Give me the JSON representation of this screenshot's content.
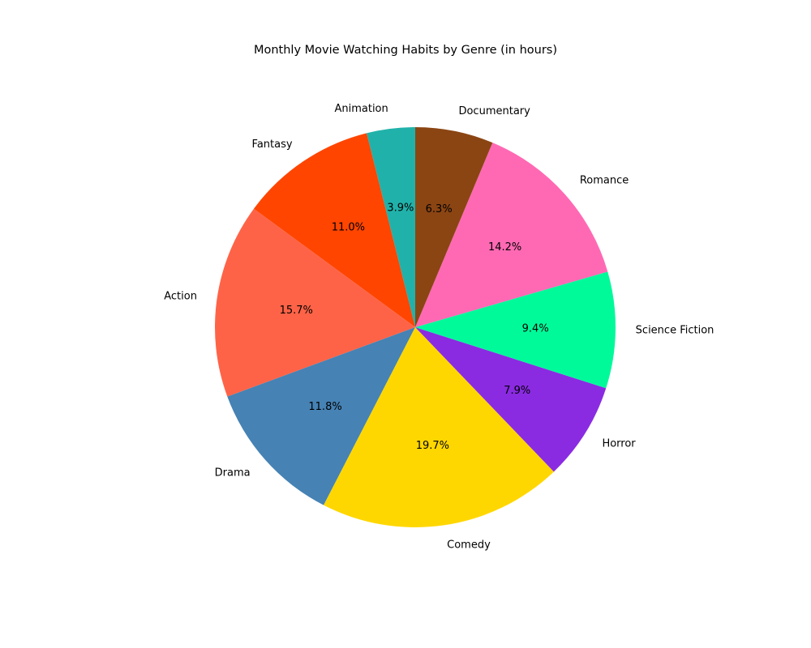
{
  "chart_data": {
    "type": "pie",
    "title": "Monthly Movie Watching Habits by Genre (in hours)",
    "start_angle_deg": 90,
    "direction": "counterclockwise",
    "slices": [
      {
        "label": "Animation",
        "value": 3.9,
        "pct_label": "3.9%",
        "color": "#20B2AA"
      },
      {
        "label": "Fantasy",
        "value": 11.0,
        "pct_label": "11.0%",
        "color": "#FF4500"
      },
      {
        "label": "Action",
        "value": 15.7,
        "pct_label": "15.7%",
        "color": "#FF6347"
      },
      {
        "label": "Drama",
        "value": 11.8,
        "pct_label": "11.8%",
        "color": "#4682B4"
      },
      {
        "label": "Comedy",
        "value": 19.7,
        "pct_label": "19.7%",
        "color": "#FFD700"
      },
      {
        "label": "Horror",
        "value": 7.9,
        "pct_label": "7.9%",
        "color": "#8A2BE2"
      },
      {
        "label": "Science Fiction",
        "value": 9.4,
        "pct_label": "9.4%",
        "color": "#00FA9A"
      },
      {
        "label": "Romance",
        "value": 14.2,
        "pct_label": "14.2%",
        "color": "#FF69B4"
      },
      {
        "label": "Documentary",
        "value": 6.3,
        "pct_label": "6.3%",
        "color": "#8B4513"
      }
    ]
  }
}
